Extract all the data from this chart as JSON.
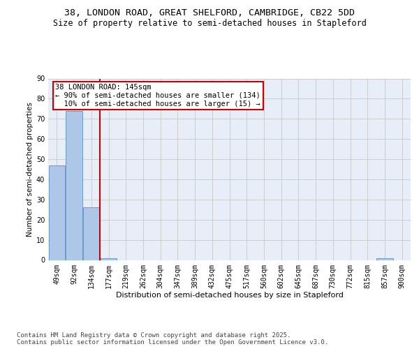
{
  "title1": "38, LONDON ROAD, GREAT SHELFORD, CAMBRIDGE, CB22 5DD",
  "title2": "Size of property relative to semi-detached houses in Stapleford",
  "xlabel": "Distribution of semi-detached houses by size in Stapleford",
  "ylabel": "Number of semi-detached properties",
  "categories": [
    "49sqm",
    "92sqm",
    "134sqm",
    "177sqm",
    "219sqm",
    "262sqm",
    "304sqm",
    "347sqm",
    "389sqm",
    "432sqm",
    "475sqm",
    "517sqm",
    "560sqm",
    "602sqm",
    "645sqm",
    "687sqm",
    "730sqm",
    "772sqm",
    "815sqm",
    "857sqm",
    "900sqm"
  ],
  "values": [
    47,
    74,
    26,
    1,
    0,
    0,
    0,
    0,
    0,
    0,
    0,
    0,
    0,
    0,
    0,
    0,
    0,
    0,
    0,
    1,
    0
  ],
  "bar_color": "#aec6e8",
  "bar_edge_color": "#5a8fc0",
  "grid_color": "#cccccc",
  "background_color": "#e8eef8",
  "annotation_box_color": "#cc0000",
  "annotation_text": "38 LONDON ROAD: 145sqm\n← 90% of semi-detached houses are smaller (134)\n  10% of semi-detached houses are larger (15) →",
  "vline_x_index": 2.5,
  "vline_color": "#cc0000",
  "ylim": [
    0,
    90
  ],
  "yticks": [
    0,
    10,
    20,
    30,
    40,
    50,
    60,
    70,
    80,
    90
  ],
  "footer": "Contains HM Land Registry data © Crown copyright and database right 2025.\nContains public sector information licensed under the Open Government Licence v3.0.",
  "title_fontsize": 9.5,
  "subtitle_fontsize": 8.5,
  "annotation_fontsize": 7.5,
  "footer_fontsize": 6.5,
  "tick_fontsize": 7,
  "ylabel_fontsize": 7.5,
  "xlabel_fontsize": 8
}
